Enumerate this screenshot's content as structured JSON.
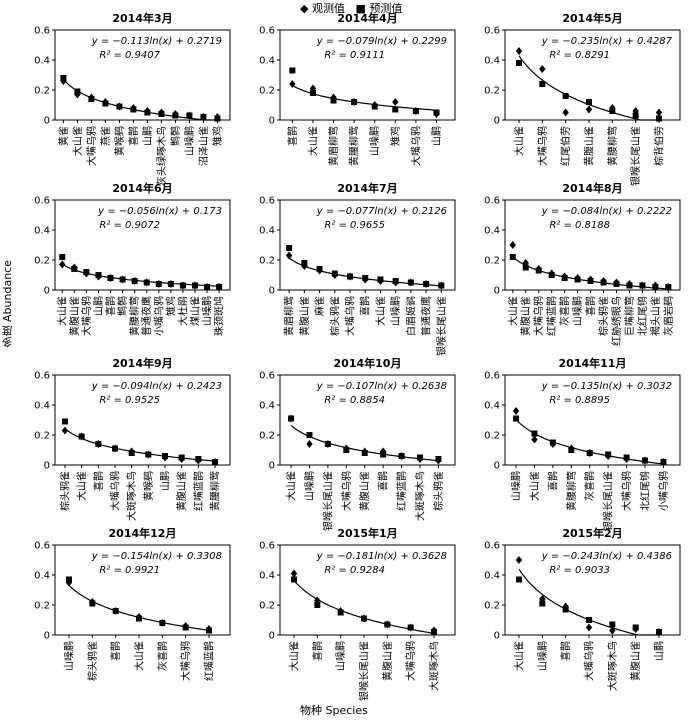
{
  "figure": {
    "y_axis_label": "多度 Abundance",
    "x_axis_label": "物种 Species",
    "legend": {
      "observed": "观测值",
      "predicted": "预测值"
    }
  },
  "chart_data": [
    {
      "type": "scatter",
      "title": "2014年3月",
      "equation": "y = −0.113ln(x) + 0.2719",
      "r2": "R² = 0.9407",
      "a": -0.113,
      "b": 0.2719,
      "ylim": [
        0,
        0.6
      ],
      "yticks": [
        0,
        0.2,
        0.4,
        0.6
      ],
      "categories": [
        "黄雀",
        "大山雀",
        "大嘴乌鸦",
        "燕雀",
        "黄喉鹀",
        "喜鹊",
        "山鹛",
        "灰头绿啄木鸟",
        "鹪鹩",
        "山噪鹛",
        "沼泽山雀",
        "雉鸡"
      ],
      "series": [
        {
          "name": "观测值",
          "values": [
            0.26,
            0.17,
            0.15,
            0.12,
            0.09,
            0.08,
            0.06,
            0.05,
            0.04,
            0.03,
            0.02,
            0.02
          ]
        },
        {
          "name": "预测值",
          "values": [
            0.28,
            0.19,
            0.14,
            0.11,
            0.09,
            0.07,
            0.05,
            0.04,
            0.03,
            0.03,
            0.02,
            0.01
          ]
        }
      ]
    },
    {
      "type": "scatter",
      "title": "2014年4月",
      "equation": "y = −0.079ln(x) + 0.2299",
      "r2": "R² = 0.9111",
      "a": -0.079,
      "b": 0.2299,
      "ylim": [
        0,
        0.6
      ],
      "yticks": [
        0,
        0.2,
        0.4,
        0.6
      ],
      "categories": [
        "喜鹊",
        "大山雀",
        "黄眉柳莺",
        "黄腰柳莺",
        "山噪鹛",
        "雉鸡",
        "大嘴乌鸦",
        "山鹛"
      ],
      "series": [
        {
          "name": "观测值",
          "values": [
            0.24,
            0.21,
            0.15,
            0.12,
            0.1,
            0.12,
            0.06,
            0.04
          ]
        },
        {
          "name": "预测值",
          "values": [
            0.33,
            0.18,
            0.13,
            0.12,
            0.09,
            0.07,
            0.06,
            0.05
          ]
        }
      ]
    },
    {
      "type": "scatter",
      "title": "2014年5月",
      "equation": "y = −0.235ln(x) + 0.4287",
      "r2": "R² = 0.8291",
      "a": -0.235,
      "b": 0.4287,
      "ylim": [
        0,
        0.6
      ],
      "yticks": [
        0,
        0.2,
        0.4,
        0.6
      ],
      "categories": [
        "大山雀",
        "大嘴乌鸦",
        "红尾伯劳",
        "黄腹山雀",
        "黄腰柳莺",
        "银喉长尾山雀",
        "棕背伯劳"
      ],
      "series": [
        {
          "name": "观测值",
          "values": [
            0.46,
            0.34,
            0.05,
            0.07,
            0.08,
            0.06,
            0.05
          ]
        },
        {
          "name": "预测值",
          "values": [
            0.38,
            0.24,
            0.16,
            0.12,
            0.06,
            0.03,
            0.01
          ]
        }
      ]
    },
    {
      "type": "scatter",
      "title": "2014年6月",
      "equation": "y = −0.056ln(x) + 0.173",
      "r2": "R² = 0.9072",
      "a": -0.056,
      "b": 0.173,
      "ylim": [
        0,
        0.6
      ],
      "yticks": [
        0,
        0.2,
        0.4,
        0.6
      ],
      "categories": [
        "大山雀",
        "黄腹山雀",
        "大嘴乌鸦",
        "山鹛",
        "喜鹊",
        "鹪鹩",
        "黄腰柳莺",
        "普通夜鹰",
        "小嘴乌鸦",
        "雉鸡",
        "大杜鹃",
        "煤山雀",
        "山噪鹛",
        "珠颈斑鸠"
      ],
      "series": [
        {
          "name": "观测值",
          "values": [
            0.17,
            0.15,
            0.11,
            0.09,
            0.08,
            0.07,
            0.06,
            0.05,
            0.04,
            0.04,
            0.03,
            0.03,
            0.02,
            0.02
          ]
        },
        {
          "name": "预测值",
          "values": [
            0.22,
            0.14,
            0.12,
            0.1,
            0.08,
            0.07,
            0.06,
            0.05,
            0.04,
            0.04,
            0.03,
            0.03,
            0.02,
            0.02
          ]
        }
      ]
    },
    {
      "type": "scatter",
      "title": "2014年7月",
      "equation": "y = −0.077ln(x) + 0.2126",
      "r2": "R² = 0.9655",
      "a": -0.077,
      "b": 0.2126,
      "ylim": [
        0,
        0.6
      ],
      "yticks": [
        0,
        0.2,
        0.4,
        0.6
      ],
      "categories": [
        "黄眉柳莺",
        "黄腹山雀",
        "麻雀",
        "棕头鸦雀",
        "大嘴乌鸦",
        "喜鹊",
        "大山雀",
        "山噪鹛",
        "白眉姬鹟",
        "普通夜鹰",
        "银喉长尾山雀"
      ],
      "series": [
        {
          "name": "观测值",
          "values": [
            0.23,
            0.16,
            0.13,
            0.1,
            0.09,
            0.07,
            0.06,
            0.05,
            0.05,
            0.04,
            0.03
          ]
        },
        {
          "name": "预测值",
          "values": [
            0.28,
            0.18,
            0.14,
            0.11,
            0.09,
            0.08,
            0.07,
            0.06,
            0.05,
            0.04,
            0.03
          ]
        }
      ]
    },
    {
      "type": "scatter",
      "title": "2014年8月",
      "equation": "y = −0.084ln(x) + 0.2222",
      "r2": "R² = 0.8188",
      "a": -0.084,
      "b": 0.2222,
      "ylim": [
        0,
        0.6
      ],
      "yticks": [
        0,
        0.2,
        0.4,
        0.6
      ],
      "categories": [
        "大山雀",
        "黄腹山雀",
        "大嘴乌鸦",
        "红嘴蓝鹊",
        "灰喜鹊",
        "山噪鹛",
        "喜鹊",
        "棕头鸦雀",
        "红胁绣眼鸟",
        "巨嘴柳莺",
        "北红尾鸲",
        "褐头山雀",
        "灰眉岩鹀"
      ],
      "series": [
        {
          "name": "观测值",
          "values": [
            0.3,
            0.18,
            0.14,
            0.11,
            0.09,
            0.08,
            0.07,
            0.06,
            0.05,
            0.04,
            0.03,
            0.03,
            0.02
          ]
        },
        {
          "name": "预测值",
          "values": [
            0.22,
            0.15,
            0.13,
            0.1,
            0.08,
            0.07,
            0.06,
            0.05,
            0.04,
            0.03,
            0.03,
            0.02,
            0.02
          ]
        }
      ]
    },
    {
      "type": "scatter",
      "title": "2014年9月",
      "equation": "y = −0.094ln(x) + 0.2423",
      "r2": "R² = 0.9525",
      "a": -0.094,
      "b": 0.2423,
      "ylim": [
        0,
        0.6
      ],
      "yticks": [
        0,
        0.2,
        0.4,
        0.6
      ],
      "categories": [
        "棕头鸦雀",
        "大山雀",
        "喜鹊",
        "大嘴乌鸦",
        "大斑啄木鸟",
        "黄喉鹀",
        "山鹛",
        "黄腹山雀",
        "红嘴蓝鹊",
        "黄腰柳莺"
      ],
      "series": [
        {
          "name": "观测值",
          "values": [
            0.23,
            0.19,
            0.14,
            0.11,
            0.09,
            0.07,
            0.05,
            0.04,
            0.03,
            0.02
          ]
        },
        {
          "name": "预测值",
          "values": [
            0.29,
            0.19,
            0.14,
            0.11,
            0.08,
            0.07,
            0.06,
            0.05,
            0.04,
            0.02
          ]
        }
      ]
    },
    {
      "type": "scatter",
      "title": "2014年10月",
      "equation": "y = −0.107ln(x) + 0.2638",
      "r2": "R² = 0.8854",
      "a": -0.107,
      "b": 0.2638,
      "ylim": [
        0,
        0.6
      ],
      "yticks": [
        0,
        0.2,
        0.4,
        0.6
      ],
      "categories": [
        "大山雀",
        "山噪鹛",
        "银喉长尾山雀",
        "大嘴乌鸦",
        "黄腹山雀",
        "喜鹊",
        "红嘴蓝鹊",
        "大斑啄木鸟",
        "棕头鸦雀"
      ],
      "series": [
        {
          "name": "观测值",
          "values": [
            0.31,
            0.14,
            0.14,
            0.11,
            0.09,
            0.09,
            0.06,
            0.04,
            0.03
          ]
        },
        {
          "name": "预测值",
          "values": [
            0.31,
            0.2,
            0.14,
            0.1,
            0.08,
            0.07,
            0.06,
            0.05,
            0.04
          ]
        }
      ]
    },
    {
      "type": "scatter",
      "title": "2014年11月",
      "equation": "y = −0.135ln(x) + 0.3032",
      "r2": "R² = 0.8895",
      "a": -0.135,
      "b": 0.3032,
      "ylim": [
        0,
        0.6
      ],
      "yticks": [
        0,
        0.2,
        0.4,
        0.6
      ],
      "categories": [
        "山噪鹛",
        "大山雀",
        "喜鹊",
        "黄腰柳莺",
        "灰喜鹊",
        "银喉长尾山雀",
        "大嘴乌鸦",
        "北红尾鸲",
        "小嘴乌鸦"
      ],
      "series": [
        {
          "name": "观测值",
          "values": [
            0.36,
            0.17,
            0.14,
            0.11,
            0.08,
            0.06,
            0.04,
            0.03,
            0.02
          ]
        },
        {
          "name": "预测值",
          "values": [
            0.31,
            0.21,
            0.15,
            0.1,
            0.08,
            0.07,
            0.05,
            0.03,
            0.02
          ]
        }
      ]
    },
    {
      "type": "scatter",
      "title": "2014年12月",
      "equation": "y = −0.154ln(x) + 0.3308",
      "r2": "R² = 0.9921",
      "a": -0.154,
      "b": 0.3308,
      "ylim": [
        0,
        0.6
      ],
      "yticks": [
        0,
        0.2,
        0.4,
        0.6
      ],
      "categories": [
        "山噪鹛",
        "棕头鸦雀",
        "喜鹊",
        "大山雀",
        "灰喜鹊",
        "大嘴乌鸦",
        "红嘴蓝鹊"
      ],
      "series": [
        {
          "name": "观测值",
          "values": [
            0.35,
            0.22,
            0.16,
            0.12,
            0.08,
            0.06,
            0.04
          ]
        },
        {
          "name": "预测值",
          "values": [
            0.37,
            0.21,
            0.16,
            0.11,
            0.08,
            0.05,
            0.03
          ]
        }
      ]
    },
    {
      "type": "scatter",
      "title": "2015年1月",
      "equation": "y = −0.181ln(x) + 0.3628",
      "r2": "R² = 0.9284",
      "a": -0.181,
      "b": 0.3628,
      "ylim": [
        0,
        0.6
      ],
      "yticks": [
        0,
        0.2,
        0.4,
        0.6
      ],
      "categories": [
        "大山雀",
        "喜鹊",
        "山噪鹛",
        "银喉长尾山雀",
        "黄腹山雀",
        "大嘴乌鸦",
        "大斑啄木鸟"
      ],
      "series": [
        {
          "name": "观测值",
          "values": [
            0.41,
            0.23,
            0.16,
            0.11,
            0.07,
            0.05,
            0.03
          ]
        },
        {
          "name": "预测值",
          "values": [
            0.37,
            0.2,
            0.15,
            0.11,
            0.07,
            0.05,
            0.02
          ]
        }
      ]
    },
    {
      "type": "scatter",
      "title": "2015年2月",
      "equation": "y = −0.243ln(x) + 0.4386",
      "r2": "R² = 0.9033",
      "a": -0.243,
      "b": 0.4386,
      "ylim": [
        0,
        0.6
      ],
      "yticks": [
        0,
        0.2,
        0.4,
        0.6
      ],
      "categories": [
        "大山雀",
        "山噪鹛",
        "喜鹊",
        "大嘴乌鸦",
        "大斑啄木鸟",
        "黄腹山雀",
        "山鹛"
      ],
      "series": [
        {
          "name": "观测值",
          "values": [
            0.5,
            0.24,
            0.19,
            0.05,
            0.03,
            0.04,
            0.02
          ]
        },
        {
          "name": "预测值",
          "values": [
            0.37,
            0.21,
            0.17,
            0.1,
            0.07,
            0.05,
            0.02
          ]
        }
      ]
    }
  ]
}
